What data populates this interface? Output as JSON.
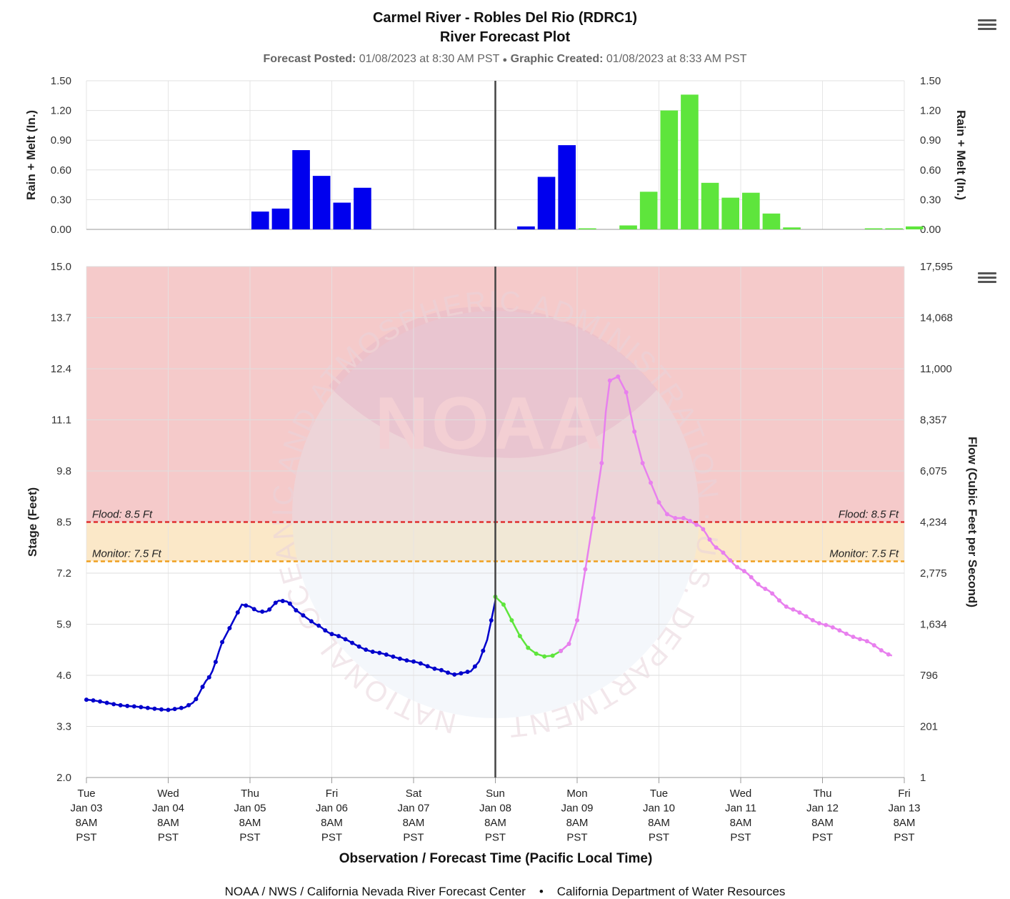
{
  "header": {
    "title_line1": "Carmel River - Robles Del Rio (RDRC1)",
    "title_line2": "River Forecast Plot",
    "posted_label": "Forecast Posted:",
    "posted_value": "01/08/2023 at 8:30 AM PST",
    "separator": "●",
    "created_label": "Graphic Created:",
    "created_value": "01/08/2023 at 8:33 AM PST"
  },
  "footer": {
    "left": "NOAA / NWS / California Nevada River Forecast Center",
    "separator": "•",
    "right": "California Department of Water Resources"
  },
  "watermark": {
    "logo_text": "NOAA",
    "ring_text": "NATIONAL OCEANIC AND ATMOSPHERIC ADMINISTRATION · U.S. DEPARTMENT OF COMMERCE"
  },
  "chart_data": [
    {
      "type": "bar",
      "ylabel_left": "Rain + Melt (In.)",
      "ylabel_right": "Rain + Melt (In.)",
      "ylim": [
        0,
        1.5
      ],
      "yticks": [
        "0.00",
        "0.30",
        "0.60",
        "0.90",
        "1.20",
        "1.50"
      ],
      "x_start": "Jan 03 8AM",
      "bin_hours": 6,
      "grid": true,
      "colors": {
        "observed": "#0000ee",
        "forecast": "#5ee53c"
      },
      "series": [
        {
          "name": "observed",
          "bins": [
            8,
            9,
            10,
            11,
            12,
            13,
            21,
            22,
            23
          ],
          "values": [
            0.18,
            0.21,
            0.8,
            0.54,
            0.27,
            0.42,
            0.03,
            0.53,
            0.85
          ]
        },
        {
          "name": "forecast",
          "bins": [
            24,
            26,
            27,
            28,
            29,
            30,
            31,
            32,
            33,
            34,
            38,
            39,
            40
          ],
          "values": [
            0.01,
            0.04,
            0.38,
            1.2,
            1.36,
            0.47,
            0.32,
            0.37,
            0.16,
            0.02,
            0.0,
            0.01,
            0.03
          ]
        }
      ]
    },
    {
      "type": "line",
      "ylabel_left": "Stage (Feet)",
      "ylabel_right": "Flow (Cubic Feet per Second)",
      "xlabel": "Observation / Forecast Time (Pacific Local Time)",
      "ylim": [
        2.0,
        15.0
      ],
      "yticks": [
        "2.0",
        "3.3",
        "4.6",
        "5.9",
        "7.2",
        "8.5",
        "9.8",
        "11.1",
        "12.4",
        "13.7",
        "15.0"
      ],
      "yticks_right": [
        "1",
        "201",
        "796",
        "1,634",
        "2,775",
        "4,234",
        "6,075",
        "8,357",
        "11,000",
        "14,068",
        "17,595"
      ],
      "xticks": [
        [
          "Tue",
          "Jan 03",
          "8AM",
          "PST"
        ],
        [
          "Wed",
          "Jan 04",
          "8AM",
          "PST"
        ],
        [
          "Thu",
          "Jan 05",
          "8AM",
          "PST"
        ],
        [
          "Fri",
          "Jan 06",
          "8AM",
          "PST"
        ],
        [
          "Sat",
          "Jan 07",
          "8AM",
          "PST"
        ],
        [
          "Sun",
          "Jan 08",
          "8AM",
          "PST"
        ],
        [
          "Mon",
          "Jan 09",
          "8AM",
          "PST"
        ],
        [
          "Tue",
          "Jan 10",
          "8AM",
          "PST"
        ],
        [
          "Wed",
          "Jan 11",
          "8AM",
          "PST"
        ],
        [
          "Thu",
          "Jan 12",
          "8AM",
          "PST"
        ],
        [
          "Fri",
          "Jan 13",
          "8AM",
          "PST"
        ]
      ],
      "x_unit": "days from Tue Jan 03 8AM PST",
      "now_day": 5.0,
      "thresholds": [
        {
          "label": "Flood: 8.5 Ft",
          "value": 8.5,
          "color": "#e03030"
        },
        {
          "label": "Monitor: 7.5 Ft",
          "value": 7.5,
          "color": "#f0a020"
        }
      ],
      "bands": [
        {
          "from": 8.5,
          "to": 15.0,
          "color": "#f5caca"
        },
        {
          "from": 7.5,
          "to": 8.5,
          "color": "#fbe8c8"
        }
      ],
      "grid": true,
      "series": [
        {
          "name": "observed",
          "color": "#0000cc",
          "x": [
            0,
            0.5,
            1.0,
            1.2,
            1.3,
            1.5,
            1.7,
            1.8,
            1.9,
            2.0,
            2.1,
            2.2,
            2.35,
            2.45,
            2.6,
            2.7,
            2.8,
            3.0,
            3.5,
            4.0,
            4.3,
            4.5,
            4.7,
            4.8,
            4.9,
            5.0
          ],
          "y": [
            3.98,
            3.82,
            3.72,
            3.78,
            3.9,
            4.55,
            5.6,
            6.0,
            6.4,
            6.35,
            6.22,
            6.22,
            6.5,
            6.48,
            6.2,
            6.05,
            5.9,
            5.65,
            5.2,
            4.95,
            4.75,
            4.62,
            4.7,
            4.95,
            5.5,
            6.5
          ]
        },
        {
          "name": "forecast",
          "color": "#5ee53c",
          "x": [
            5.0,
            5.1,
            5.2,
            5.3,
            5.4,
            5.5,
            5.6,
            5.7,
            5.8
          ],
          "y": [
            6.6,
            6.4,
            6.0,
            5.6,
            5.3,
            5.15,
            5.08,
            5.1,
            5.22
          ]
        },
        {
          "name": "forecast-extended",
          "color": "#e880ee",
          "x": [
            5.8,
            5.9,
            6.0,
            6.1,
            6.2,
            6.3,
            6.35,
            6.4,
            6.5,
            6.6,
            6.7,
            6.8,
            6.9,
            7.0,
            7.1,
            7.2,
            7.3,
            7.5,
            7.7,
            8.0,
            8.3,
            8.6,
            9.0,
            9.5,
            9.85
          ],
          "y": [
            5.22,
            5.4,
            6.0,
            7.3,
            8.6,
            10.0,
            11.3,
            12.1,
            12.2,
            11.8,
            10.8,
            10.0,
            9.5,
            9.0,
            8.7,
            8.6,
            8.6,
            8.4,
            7.85,
            7.3,
            6.8,
            6.3,
            5.9,
            5.5,
            5.1
          ]
        }
      ]
    }
  ]
}
